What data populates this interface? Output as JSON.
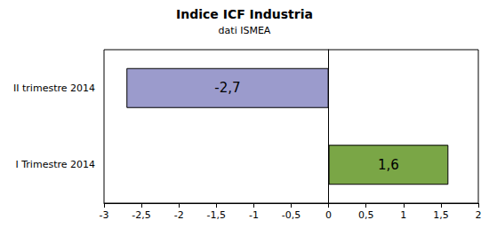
{
  "chart_data": {
    "type": "bar",
    "orientation": "horizontal",
    "title": "Indice ICF Industria",
    "subtitle": "dati ISMEA",
    "categories": [
      "I Trimestre 2014",
      "II trimestre 2014"
    ],
    "values": [
      1.6,
      -2.7
    ],
    "value_labels": [
      "1,6",
      "-2,7"
    ],
    "data_labels": true,
    "colors": [
      "#7aa646",
      "#9b9bcc"
    ],
    "xlim": [
      -3,
      2
    ],
    "xticks": [
      -3,
      {
        "value": -2.5,
        "label": "-2,5"
      },
      -2,
      {
        "value": -1.5,
        "label": "-1,5"
      },
      -1,
      {
        "value": -0.5,
        "label": "-0,5"
      },
      0,
      {
        "value": 0.5,
        "label": "0,5"
      },
      1,
      {
        "value": 1.5,
        "label": "1,5"
      },
      2
    ],
    "grid": false
  }
}
